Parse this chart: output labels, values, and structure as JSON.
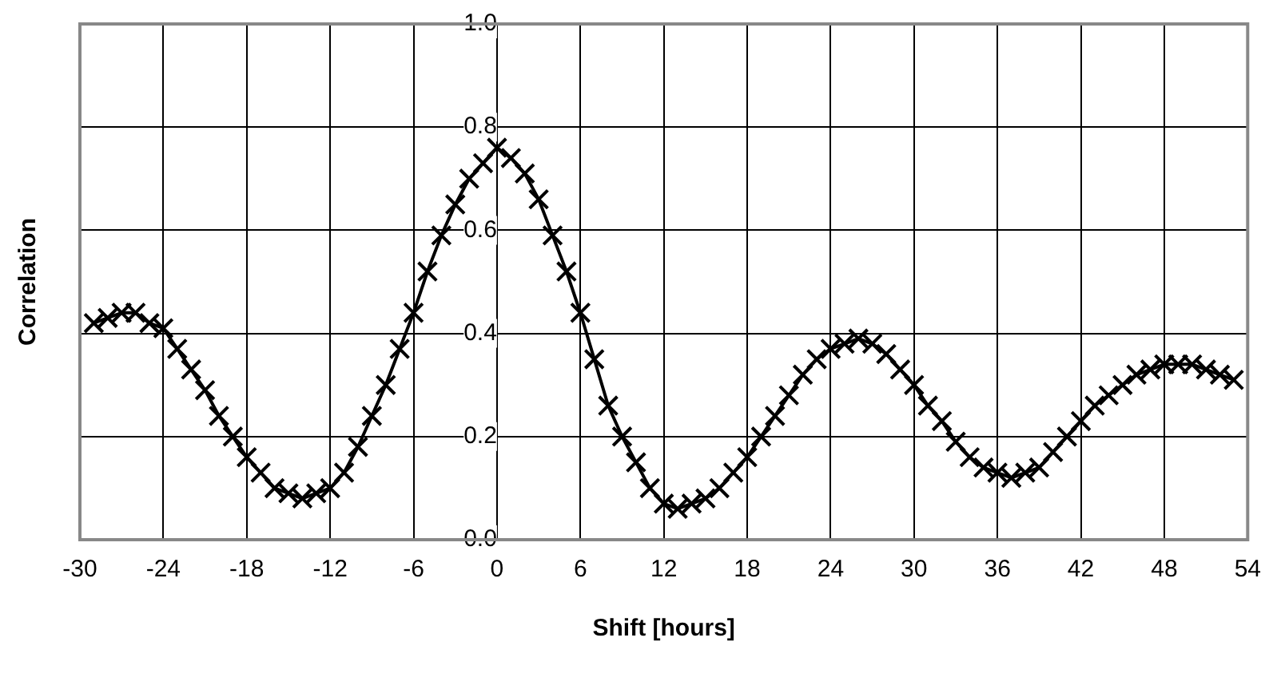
{
  "chart_data": {
    "type": "line",
    "xlabel": "Shift [hours]",
    "ylabel": "Correlation",
    "x": [
      -29,
      -28,
      -27,
      -26,
      -25,
      -24,
      -23,
      -22,
      -21,
      -20,
      -19,
      -18,
      -17,
      -16,
      -15,
      -14,
      -13,
      -12,
      -11,
      -10,
      -9,
      -8,
      -7,
      -6,
      -5,
      -4,
      -3,
      -2,
      -1,
      0,
      1,
      2,
      3,
      4,
      5,
      6,
      7,
      8,
      9,
      10,
      11,
      12,
      13,
      14,
      15,
      16,
      17,
      18,
      19,
      20,
      21,
      22,
      23,
      24,
      25,
      26,
      27,
      28,
      29,
      30,
      31,
      32,
      33,
      34,
      35,
      36,
      37,
      38,
      39,
      40,
      41,
      42,
      43,
      44,
      45,
      46,
      47,
      48,
      49,
      50,
      51,
      52,
      53
    ],
    "series": [
      {
        "color": "#000000",
        "values": [
          0.42,
          0.43,
          0.44,
          0.44,
          0.42,
          0.41,
          0.37,
          0.33,
          0.29,
          0.24,
          0.2,
          0.16,
          0.13,
          0.1,
          0.09,
          0.08,
          0.09,
          0.1,
          0.13,
          0.18,
          0.24,
          0.3,
          0.37,
          0.44,
          0.52,
          0.59,
          0.65,
          0.7,
          0.73,
          0.76,
          0.74,
          0.71,
          0.66,
          0.59,
          0.52,
          0.44,
          0.35,
          0.26,
          0.2,
          0.15,
          0.1,
          0.07,
          0.06,
          0.07,
          0.08,
          0.1,
          0.13,
          0.16,
          0.2,
          0.24,
          0.28,
          0.32,
          0.35,
          0.37,
          0.38,
          0.39,
          0.38,
          0.36,
          0.33,
          0.3,
          0.26,
          0.23,
          0.19,
          0.16,
          0.14,
          0.13,
          0.12,
          0.13,
          0.14,
          0.17,
          0.2,
          0.23,
          0.26,
          0.28,
          0.3,
          0.32,
          0.33,
          0.34,
          0.34,
          0.34,
          0.33,
          0.32,
          0.31
        ]
      }
    ],
    "xlim": [
      -30,
      54
    ],
    "xticks": [
      -30,
      -24,
      -18,
      -12,
      -6,
      0,
      6,
      12,
      18,
      24,
      30,
      36,
      42,
      48,
      54
    ],
    "ylim": [
      0,
      1
    ],
    "yticks": [
      {
        "value": 0,
        "label": "0.0"
      },
      0.2,
      0.4,
      0.6,
      0.8,
      {
        "value": 1,
        "label": "1.0"
      }
    ],
    "grid": true,
    "legend": false,
    "marker": "cross",
    "line_style": "solid"
  }
}
